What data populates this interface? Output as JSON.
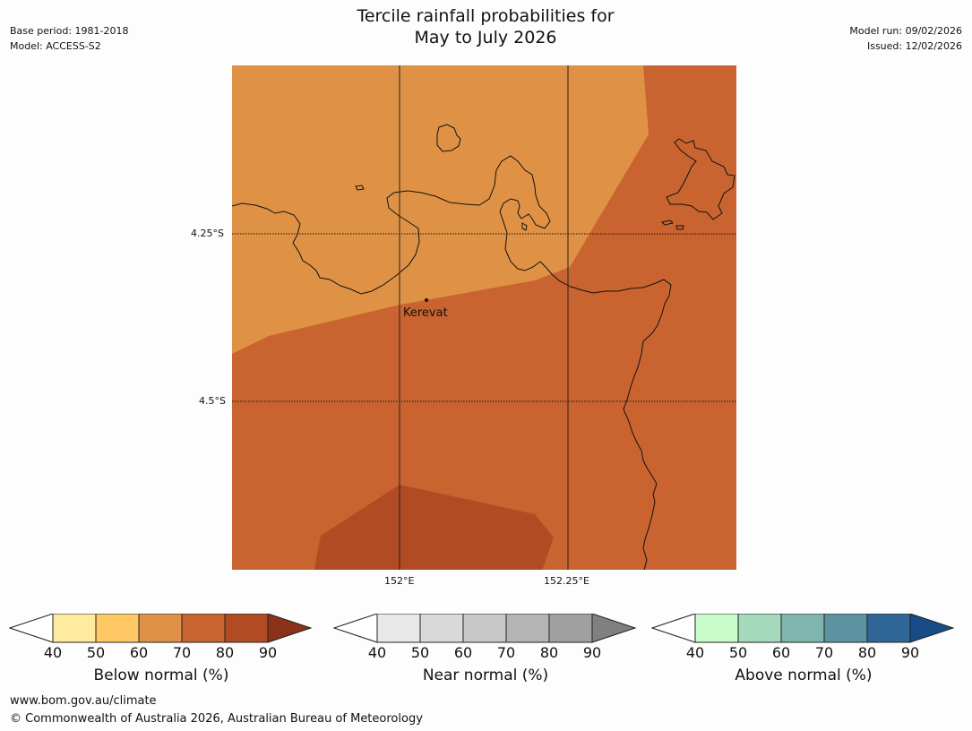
{
  "header": {
    "title_line1": "Tercile rainfall probabilities for",
    "title_line2": "May to July 2026",
    "base_period": "Base period: 1981-2018",
    "model": "Model: ACCESS-S2",
    "model_run": "Model run: 09/02/2026",
    "issued": "Issued: 12/02/2026"
  },
  "map": {
    "lat_labels": [
      "4.25°S",
      "4.5°S"
    ],
    "lon_labels": [
      "152°E",
      "152.25°E"
    ],
    "place": "Kerevat",
    "colors": {
      "band_50_60": "#df9245",
      "band_60_70": "#c96430",
      "band_70_80": "#b04b24",
      "coast": "#111111"
    }
  },
  "colorbars": [
    {
      "label": "Below normal (%)",
      "ticks": [
        "40",
        "50",
        "60",
        "70",
        "80",
        "90"
      ],
      "colors": [
        "#ffeba0",
        "#fec965",
        "#df9245",
        "#c96430",
        "#b04b24"
      ],
      "over_color": "#8b3218",
      "under_color": "#ffffff"
    },
    {
      "label": "Near normal (%)",
      "ticks": [
        "40",
        "50",
        "60",
        "70",
        "80",
        "90"
      ],
      "colors": [
        "#e8e8e8",
        "#d9d9d9",
        "#c8c8c8",
        "#b4b4b4",
        "#a0a0a0"
      ],
      "over_color": "#808080",
      "under_color": "#ffffff"
    },
    {
      "label": "Above normal (%)",
      "ticks": [
        "40",
        "50",
        "60",
        "70",
        "80",
        "90"
      ],
      "colors": [
        "#c9fbcb",
        "#a4d9bb",
        "#80b5ae",
        "#5b93a0",
        "#2f6597"
      ],
      "over_color": "#174c86",
      "under_color": "#ffffff"
    }
  ],
  "footer": {
    "url": "www.bom.gov.au/climate",
    "copyright": "© Commonwealth of Australia 2026, Australian Bureau of Meteorology"
  }
}
